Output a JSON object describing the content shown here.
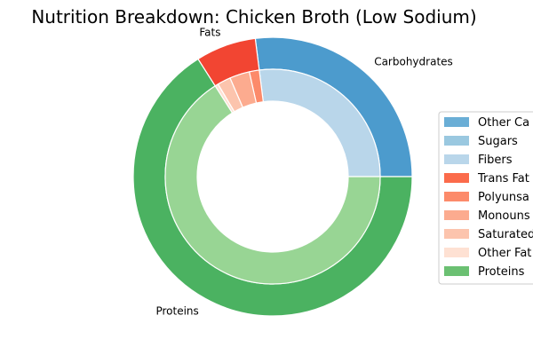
{
  "chart_data": {
    "type": "pie",
    "variant": "nested-donut",
    "title": "Nutrition Breakdown:  Chicken Broth (Low Sodium)",
    "outer_ring": {
      "labels": [
        "Carbohydrates",
        "Fats",
        "Proteins"
      ],
      "values": [
        27,
        7,
        66
      ],
      "colors": [
        "#4c9bcd",
        "#f24532",
        "#4bb261"
      ]
    },
    "inner_ring": {
      "labels": [
        "Other Carbs",
        "Sugars",
        "Fibers",
        "Trans Fats",
        "Polyunsaturated Fats",
        "Monounsaturated Fats",
        "Saturated Fats",
        "Other Fats",
        "Proteins"
      ],
      "values": [
        0,
        0,
        27,
        0,
        1.5,
        3,
        2,
        0.5,
        66
      ],
      "colors": [
        "#6aaed6",
        "#9ac8e0",
        "#b9d6ea",
        "#fb6b4b",
        "#fc8a6a",
        "#fcab8f",
        "#fcc4ad",
        "#fee1d3",
        "#98d594"
      ]
    },
    "start_angle_deg": 0,
    "direction": "counterclockwise",
    "legend": {
      "position": "right",
      "entries": [
        "Other Ca",
        "Sugars",
        "Fibers",
        "Trans Fat",
        "Polyunsa",
        "Monouns",
        "Saturated",
        "Other Fat",
        "Proteins"
      ],
      "colors": [
        "#6aaed6",
        "#9ac8e0",
        "#b9d6ea",
        "#fb6b4b",
        "#fc8a6a",
        "#fcab8f",
        "#fcc4ad",
        "#fee1d3",
        "#6bc072"
      ]
    }
  }
}
